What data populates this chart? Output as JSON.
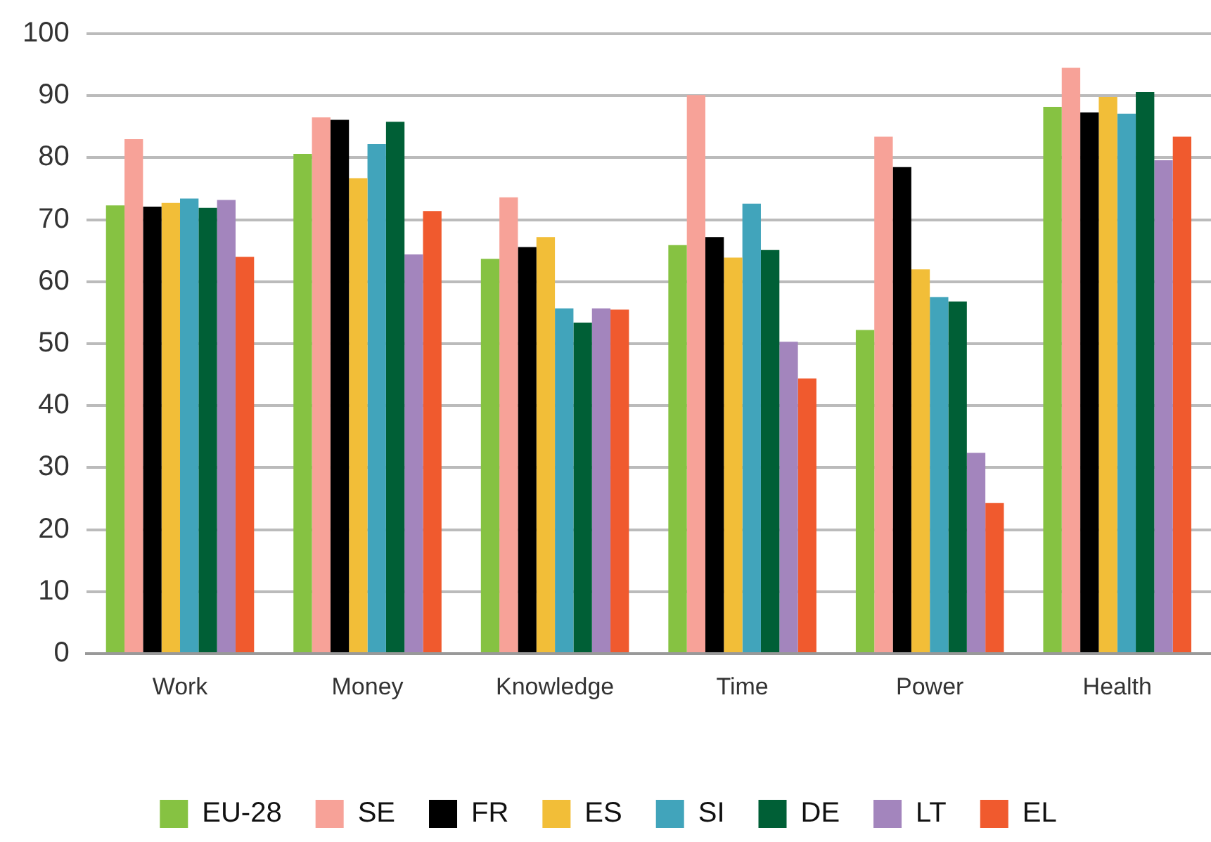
{
  "chart_data": {
    "type": "bar",
    "categories": [
      "Work",
      "Money",
      "Knowledge",
      "Time",
      "Power",
      "Health"
    ],
    "series": [
      {
        "name": "EU-28",
        "color": "#86c242",
        "values": [
          72.3,
          80.6,
          63.7,
          65.9,
          52.2,
          88.2
        ]
      },
      {
        "name": "SE",
        "color": "#f7a298",
        "values": [
          83,
          86.5,
          73.6,
          90.1,
          83.4,
          94.5
        ]
      },
      {
        "name": "FR",
        "color": "#000000",
        "values": [
          72.1,
          86.1,
          65.6,
          67.2,
          78.5,
          87.3
        ]
      },
      {
        "name": "ES",
        "color": "#f2be38",
        "values": [
          72.7,
          76.7,
          67.2,
          63.9,
          62,
          89.8
        ]
      },
      {
        "name": "SI",
        "color": "#41a4bb",
        "values": [
          73.4,
          82.2,
          55.7,
          72.6,
          57.5,
          87.1
        ]
      },
      {
        "name": "DE",
        "color": "#005f36",
        "values": [
          71.9,
          85.8,
          53.4,
          65.1,
          56.8,
          90.6
        ]
      },
      {
        "name": "LT",
        "color": "#a385bd",
        "values": [
          73.2,
          64.4,
          55.7,
          50.3,
          32.4,
          79.6
        ]
      },
      {
        "name": "EL",
        "color": "#f05a2e",
        "values": [
          64,
          71.4,
          55.5,
          44.4,
          24.3,
          83.4
        ]
      }
    ],
    "ylim": [
      0,
      100
    ],
    "yticks": [
      0,
      10,
      20,
      30,
      40,
      50,
      60,
      70,
      80,
      90,
      100
    ],
    "grid": "y",
    "legend": "bottom"
  }
}
